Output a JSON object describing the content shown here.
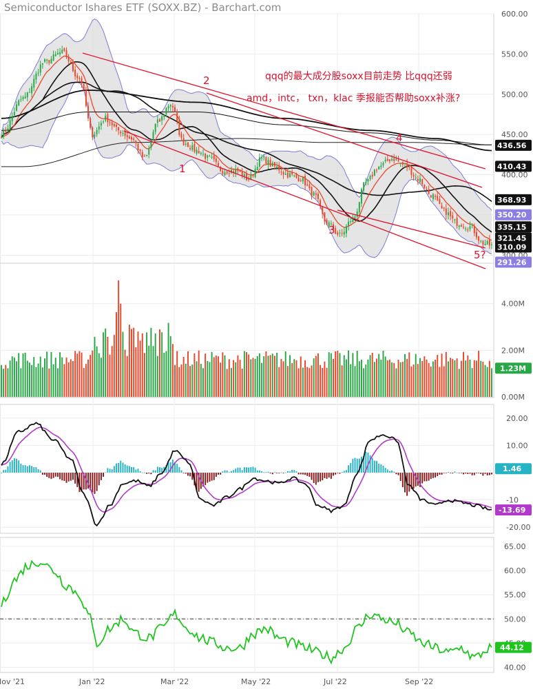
{
  "title": "Semiconductor Ishares ETF (SOXX.BZ) - Barchart.com",
  "annotation": {
    "line1": "qqq的最大成分股soxx目前走势 比qqq还弱",
    "line2": "amd，intc， txn，klac 季报能否帮助soxx补涨?"
  },
  "wave_labels": [
    "1",
    "2",
    "3",
    "4",
    "5?"
  ],
  "x_axis_labels": [
    "Nov '21",
    "Jan '22",
    "Mar '22",
    "May '22",
    "Jul '22",
    "Sep '22"
  ],
  "colors": {
    "up": "#27a745",
    "down": "#e8472a",
    "bollinger_fill": "#dcdcdc",
    "bollinger_line": "#7b7bd6",
    "channel": "#e0102a",
    "hist_up": "#26b3c4",
    "hist_down": "#8b1a1a",
    "signal": "#b039c9",
    "rsi": "#1fc41f"
  },
  "chart_data": [
    {
      "panel": "price",
      "type": "line",
      "y_ticks": [
        600,
        550,
        500,
        450,
        400,
        350,
        300
      ],
      "ylim": [
        290,
        600
      ],
      "last_close": 310.09,
      "price_badges": [
        {
          "label": "436.56",
          "value": 436.56,
          "color": "#111111"
        },
        {
          "label": "410.43",
          "value": 410.43,
          "color": "#111111"
        },
        {
          "label": "368.93",
          "value": 368.93,
          "color": "#111111"
        },
        {
          "label": "350.20",
          "value": 350.2,
          "color": "#8a7fe0"
        },
        {
          "label": "335.15",
          "value": 335.15,
          "color": "#111111"
        },
        {
          "label": "321.45",
          "value": 321.45,
          "color": "#111111"
        },
        {
          "label": "310.09",
          "value": 310.09,
          "color": "#111111"
        },
        {
          "label": "291.26",
          "value": 291.26,
          "color": "#8a7fe0"
        }
      ],
      "close_anchors": [
        [
          0,
          450
        ],
        [
          10,
          495
        ],
        [
          20,
          540
        ],
        [
          28,
          552
        ],
        [
          36,
          520
        ],
        [
          42,
          450
        ],
        [
          48,
          470
        ],
        [
          54,
          455
        ],
        [
          60,
          445
        ],
        [
          66,
          420
        ],
        [
          72,
          465
        ],
        [
          78,
          488
        ],
        [
          84,
          440
        ],
        [
          90,
          430
        ],
        [
          96,
          420
        ],
        [
          102,
          405
        ],
        [
          108,
          405
        ],
        [
          114,
          395
        ],
        [
          120,
          420
        ],
        [
          126,
          410
        ],
        [
          132,
          400
        ],
        [
          138,
          395
        ],
        [
          144,
          375
        ],
        [
          150,
          340
        ],
        [
          156,
          325
        ],
        [
          162,
          345
        ],
        [
          168,
          390
        ],
        [
          174,
          410
        ],
        [
          180,
          420
        ],
        [
          186,
          412
        ],
        [
          192,
          395
        ],
        [
          198,
          375
        ],
        [
          204,
          355
        ],
        [
          210,
          340
        ],
        [
          216,
          335
        ],
        [
          222,
          315
        ],
        [
          226,
          312
        ]
      ]
    },
    {
      "panel": "volume",
      "type": "bar",
      "y_ticks": [
        4.0,
        2.0,
        0.0
      ],
      "y_tick_labels": [
        "4.00M",
        "2.00M",
        "0.00M"
      ],
      "ylim": [
        0,
        5.5
      ],
      "last_value_label": "1.23M",
      "last_value": 1.23
    },
    {
      "panel": "macd",
      "type": "line",
      "y_ticks": [
        20,
        10,
        -10,
        -20
      ],
      "y_tick_labels": [
        "20.00",
        "10.00",
        "-10",
        "-20.00"
      ],
      "ylim": [
        -22,
        23
      ],
      "hist_last_label": "1.46",
      "hist_last": 1.46,
      "macd_last_label": "-13.69",
      "macd_last": -13.69,
      "macd_anchors": [
        [
          0,
          3
        ],
        [
          8,
          15
        ],
        [
          16,
          18
        ],
        [
          24,
          12
        ],
        [
          32,
          5
        ],
        [
          38,
          -8
        ],
        [
          44,
          -19
        ],
        [
          50,
          -12
        ],
        [
          56,
          -4
        ],
        [
          62,
          -3
        ],
        [
          68,
          -5
        ],
        [
          74,
          0
        ],
        [
          80,
          8
        ],
        [
          86,
          4
        ],
        [
          92,
          -10
        ],
        [
          98,
          -12
        ],
        [
          104,
          -9
        ],
        [
          110,
          -6
        ],
        [
          116,
          -2
        ],
        [
          122,
          -3
        ],
        [
          128,
          -4
        ],
        [
          134,
          -2
        ],
        [
          140,
          -4
        ],
        [
          146,
          -12
        ],
        [
          152,
          -14
        ],
        [
          158,
          -12
        ],
        [
          164,
          0
        ],
        [
          170,
          12
        ],
        [
          176,
          14
        ],
        [
          182,
          12
        ],
        [
          188,
          -5
        ],
        [
          194,
          -10
        ],
        [
          200,
          -12
        ],
        [
          206,
          -10
        ],
        [
          212,
          -11
        ],
        [
          218,
          -12
        ],
        [
          226,
          -13.69
        ]
      ]
    },
    {
      "panel": "rsi",
      "type": "line",
      "y_ticks": [
        65,
        60,
        55,
        50,
        45,
        40
      ],
      "y_tick_labels": [
        "65.00",
        "60.00",
        "55.00",
        "50.00",
        "45.00",
        "40.00"
      ],
      "ylim": [
        39.5,
        66
      ],
      "reference_line": 50,
      "last_value_label": "44.12",
      "last_value": 44.12,
      "rsi_anchors": [
        [
          0,
          53
        ],
        [
          6,
          58
        ],
        [
          12,
          61
        ],
        [
          18,
          62
        ],
        [
          24,
          60
        ],
        [
          30,
          57
        ],
        [
          36,
          55
        ],
        [
          40,
          51
        ],
        [
          44,
          45
        ],
        [
          50,
          48
        ],
        [
          56,
          50
        ],
        [
          62,
          47
        ],
        [
          68,
          46
        ],
        [
          74,
          48
        ],
        [
          80,
          51
        ],
        [
          86,
          48
        ],
        [
          92,
          46
        ],
        [
          98,
          45
        ],
        [
          104,
          44
        ],
        [
          110,
          44
        ],
        [
          116,
          47
        ],
        [
          122,
          48
        ],
        [
          128,
          46
        ],
        [
          134,
          45
        ],
        [
          140,
          44
        ],
        [
          146,
          43
        ],
        [
          152,
          42
        ],
        [
          158,
          44
        ],
        [
          164,
          48
        ],
        [
          170,
          51
        ],
        [
          176,
          50
        ],
        [
          182,
          49
        ],
        [
          188,
          47
        ],
        [
          194,
          45
        ],
        [
          200,
          44
        ],
        [
          206,
          43
        ],
        [
          212,
          44
        ],
        [
          218,
          42
        ],
        [
          226,
          44.12
        ]
      ]
    }
  ]
}
